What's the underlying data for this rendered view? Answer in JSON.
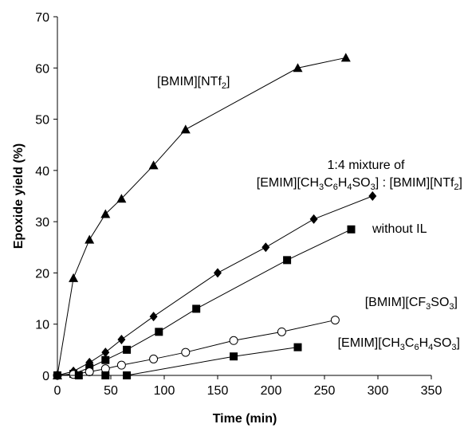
{
  "chart_data": {
    "type": "scatter",
    "title": "",
    "xlabel": "Time (min)",
    "ylabel": "Epoxide yield (%)",
    "xlim": [
      0,
      350
    ],
    "ylim": [
      0,
      70
    ],
    "xticks": [
      "0",
      "50",
      "100",
      "150",
      "200",
      "250",
      "300",
      "350"
    ],
    "yticks": [
      "0",
      "10",
      "20",
      "30",
      "40",
      "50",
      "60",
      "70"
    ],
    "grid": false,
    "legend": "none",
    "series": [
      {
        "name": "[BMIM][NTf2]",
        "label_parts": [
          [
            "[BMIM][NTf",
            ""
          ],
          [
            "2",
            "sub"
          ],
          [
            "]",
            ""
          ]
        ],
        "marker": "triangle",
        "color": "#000000",
        "x": [
          0,
          15,
          30,
          45,
          60,
          90,
          120,
          225,
          270
        ],
        "y": [
          0,
          19,
          26.5,
          31.5,
          34.5,
          41,
          48,
          60,
          62
        ]
      },
      {
        "name": "1:4 mixture of [EMIM][CH3C6H4SO3] : [BMIM][NTf2]",
        "label_line1": "1:4 mixture of",
        "label_parts": [
          [
            "[EMIM][CH",
            ""
          ],
          [
            "3",
            "sub"
          ],
          [
            "C",
            ""
          ],
          [
            "6",
            "sub"
          ],
          [
            "H",
            ""
          ],
          [
            "4",
            "sub"
          ],
          [
            "SO",
            ""
          ],
          [
            "3",
            "sub"
          ],
          [
            "] : [BMIM][NTf",
            ""
          ],
          [
            "2",
            "sub"
          ],
          [
            "]",
            ""
          ]
        ],
        "marker": "diamond",
        "color": "#000000",
        "x": [
          0,
          15,
          30,
          45,
          60,
          90,
          150,
          195,
          240,
          295
        ],
        "y": [
          0,
          0.8,
          2.5,
          4.5,
          7,
          11.5,
          20,
          25,
          30.5,
          35
        ]
      },
      {
        "name": "without IL",
        "label_parts": [
          [
            "without IL",
            ""
          ]
        ],
        "marker": "square",
        "color": "#000000",
        "x": [
          0,
          15,
          30,
          45,
          65,
          95,
          130,
          215,
          275
        ],
        "y": [
          0,
          0.3,
          1.5,
          3,
          5,
          8.5,
          13,
          22.5,
          28.5
        ]
      },
      {
        "name": "[BMIM][CF3SO3]",
        "label_parts": [
          [
            "[BMIM][CF",
            ""
          ],
          [
            "3",
            "sub"
          ],
          [
            "SO",
            ""
          ],
          [
            "3",
            "sub"
          ],
          [
            "]",
            ""
          ]
        ],
        "marker": "circle-open",
        "color": "#000000",
        "x": [
          0,
          15,
          30,
          45,
          60,
          90,
          120,
          165,
          210,
          260
        ],
        "y": [
          0,
          0.2,
          0.7,
          1.3,
          2,
          3.2,
          4.5,
          6.8,
          8.5,
          10.8
        ]
      },
      {
        "name": "[EMIM][CH3C6H4SO3]",
        "label_parts": [
          [
            "[EMIM][CH",
            ""
          ],
          [
            "3",
            "sub"
          ],
          [
            "C",
            ""
          ],
          [
            "6",
            "sub"
          ],
          [
            "H",
            ""
          ],
          [
            "4",
            "sub"
          ],
          [
            "SO",
            ""
          ],
          [
            "3",
            "sub"
          ],
          [
            "]",
            ""
          ]
        ],
        "marker": "square",
        "color": "#000000",
        "x": [
          0,
          20,
          45,
          65,
          165,
          225
        ],
        "y": [
          0,
          0,
          0,
          0,
          3.7,
          5.5
        ]
      }
    ]
  }
}
